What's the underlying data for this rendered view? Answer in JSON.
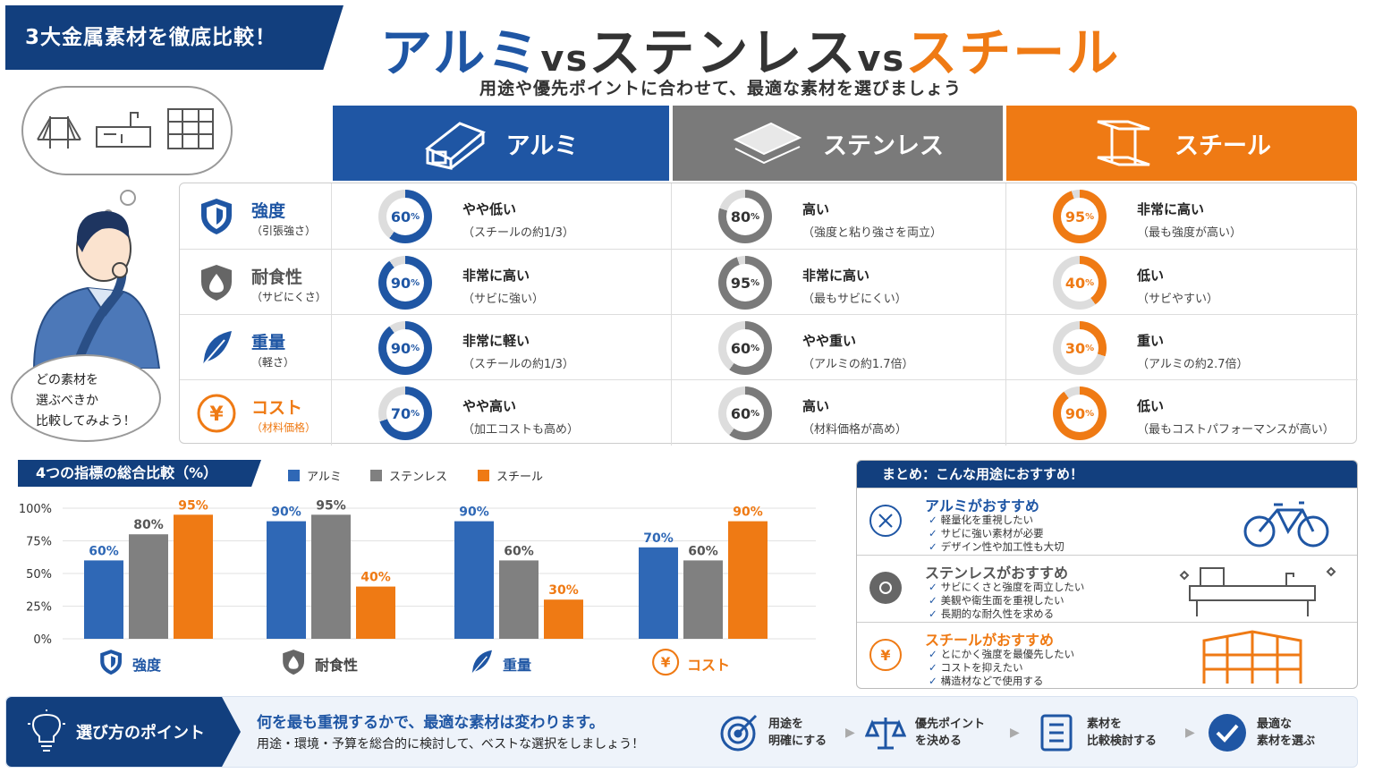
{
  "banner": "3大金属素材を徹底比較！",
  "title": {
    "a": "アルミ",
    "vs1": "vs",
    "b": "ステンレス",
    "vs2": "vs",
    "c": "スチール"
  },
  "subtitle": "用途や優先ポイントに合わせて、最適な素材を選びましょう",
  "speech": [
    "どの素材を",
    "選ぶべきか",
    "比較してみよう！"
  ],
  "colors": {
    "alu": "#1f56a4",
    "sus": "#7a7a7a",
    "steel": "#ef7a14",
    "navy": "#123f7e"
  },
  "columns": [
    "アルミ",
    "ステンレス",
    "スチール"
  ],
  "criteria": [
    {
      "name": "強度",
      "sub": "（引張強さ）",
      "icon": "shield-icon",
      "cells": [
        {
          "pct": 60,
          "l1": "やや低い",
          "l2": "（スチールの約1/3）"
        },
        {
          "pct": 80,
          "l1": "高い",
          "l2": "（強度と粘り強さを両立）"
        },
        {
          "pct": 95,
          "l1": "非常に高い",
          "l2": "（最も強度が高い）"
        }
      ]
    },
    {
      "name": "耐食性",
      "sub": "（サビにくさ）",
      "icon": "drop-shield-icon",
      "cells": [
        {
          "pct": 90,
          "l1": "非常に高い",
          "l2": "（サビに強い）"
        },
        {
          "pct": 95,
          "l1": "非常に高い",
          "l2": "（最もサビにくい）"
        },
        {
          "pct": 40,
          "l1": "低い",
          "l2": "（サビやすい）"
        }
      ]
    },
    {
      "name": "重量",
      "sub": "（軽さ）",
      "icon": "feather-icon",
      "cells": [
        {
          "pct": 90,
          "l1": "非常に軽い",
          "l2": "（スチールの約1/3）"
        },
        {
          "pct": 60,
          "l1": "やや重い",
          "l2": "（アルミの約1.7倍）"
        },
        {
          "pct": 30,
          "l1": "重い",
          "l2": "（アルミの約2.7倍）"
        }
      ]
    },
    {
      "name": "コスト",
      "sub": "（材料価格）",
      "icon": "yen-icon",
      "cells": [
        {
          "pct": 70,
          "l1": "やや高い",
          "l2": "（加工コストも高め）"
        },
        {
          "pct": 60,
          "l1": "高い",
          "l2": "（材料価格が高め）"
        },
        {
          "pct": 90,
          "l1": "低い",
          "l2": "（最もコストパフォーマンスが高い）"
        }
      ]
    }
  ],
  "chart_data": {
    "type": "bar",
    "title": "4つの指標の総合比較（%）",
    "categories": [
      "強度",
      "耐食性",
      "重量",
      "コスト"
    ],
    "series": [
      {
        "name": "アルミ",
        "values": [
          60,
          90,
          90,
          70
        ],
        "color": "#2f68b6"
      },
      {
        "name": "ステンレス",
        "values": [
          80,
          95,
          60,
          60
        ],
        "color": "#808080"
      },
      {
        "name": "スチール",
        "values": [
          95,
          40,
          30,
          90
        ],
        "color": "#ef7a14"
      }
    ],
    "ylim": [
      0,
      100
    ],
    "yticks": [
      "0%",
      "25%",
      "50%",
      "75%",
      "100%"
    ],
    "grid": true,
    "legend": "top"
  },
  "summary": {
    "title": "まとめ：こんな用途におすすめ！",
    "items": [
      {
        "title": "アルミがおすすめ",
        "points": [
          "軽量化を重視したい",
          "サビに強い素材が必要",
          "デザイン性や加工性も大切"
        ]
      },
      {
        "title": "ステンレスがおすすめ",
        "points": [
          "サビにくさと強度を両立したい",
          "美観や衛生面を重視したい",
          "長期的な耐久性を求める"
        ]
      },
      {
        "title": "スチールがおすすめ",
        "points": [
          "とにかく強度を最優先したい",
          "コストを抑えたい",
          "構造材などで使用する"
        ]
      }
    ]
  },
  "footer": {
    "head": "選び方のポイント",
    "main": "何を最も重視するかで、最適な素材は変わります。",
    "sub": "用途・環境・予算を総合的に検討して、ベストな選択をしましょう！",
    "steps": [
      [
        "用途を",
        "明確にする"
      ],
      [
        "優先ポイント",
        "を決める"
      ],
      [
        "素材を",
        "比較検討する"
      ],
      [
        "最適な",
        "素材を選ぶ"
      ]
    ]
  }
}
